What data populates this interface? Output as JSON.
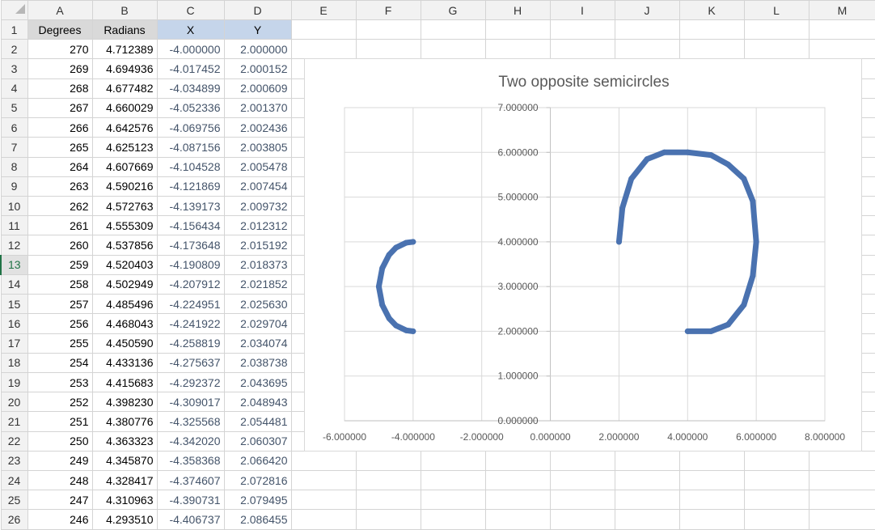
{
  "columns": [
    "A",
    "B",
    "C",
    "D",
    "E",
    "F",
    "G",
    "H",
    "I",
    "J",
    "K",
    "L",
    "M"
  ],
  "headers": {
    "degrees": "Degrees",
    "radians": "Radians",
    "x": "X",
    "y": "Y"
  },
  "rows": [
    {
      "row": "2",
      "deg": "270",
      "rad": "4.712389",
      "x": "-4.000000",
      "y": "2.000000"
    },
    {
      "row": "3",
      "deg": "269",
      "rad": "4.694936",
      "x": "-4.017452",
      "y": "2.000152"
    },
    {
      "row": "4",
      "deg": "268",
      "rad": "4.677482",
      "x": "-4.034899",
      "y": "2.000609"
    },
    {
      "row": "5",
      "deg": "267",
      "rad": "4.660029",
      "x": "-4.052336",
      "y": "2.001370"
    },
    {
      "row": "6",
      "deg": "266",
      "rad": "4.642576",
      "x": "-4.069756",
      "y": "2.002436"
    },
    {
      "row": "7",
      "deg": "265",
      "rad": "4.625123",
      "x": "-4.087156",
      "y": "2.003805"
    },
    {
      "row": "8",
      "deg": "264",
      "rad": "4.607669",
      "x": "-4.104528",
      "y": "2.005478"
    },
    {
      "row": "9",
      "deg": "263",
      "rad": "4.590216",
      "x": "-4.121869",
      "y": "2.007454"
    },
    {
      "row": "10",
      "deg": "262",
      "rad": "4.572763",
      "x": "-4.139173",
      "y": "2.009732"
    },
    {
      "row": "11",
      "deg": "261",
      "rad": "4.555309",
      "x": "-4.156434",
      "y": "2.012312"
    },
    {
      "row": "12",
      "deg": "260",
      "rad": "4.537856",
      "x": "-4.173648",
      "y": "2.015192"
    },
    {
      "row": "13",
      "deg": "259",
      "rad": "4.520403",
      "x": "-4.190809",
      "y": "2.018373"
    },
    {
      "row": "14",
      "deg": "258",
      "rad": "4.502949",
      "x": "-4.207912",
      "y": "2.021852"
    },
    {
      "row": "15",
      "deg": "257",
      "rad": "4.485496",
      "x": "-4.224951",
      "y": "2.025630"
    },
    {
      "row": "16",
      "deg": "256",
      "rad": "4.468043",
      "x": "-4.241922",
      "y": "2.029704"
    },
    {
      "row": "17",
      "deg": "255",
      "rad": "4.450590",
      "x": "-4.258819",
      "y": "2.034074"
    },
    {
      "row": "18",
      "deg": "254",
      "rad": "4.433136",
      "x": "-4.275637",
      "y": "2.038738"
    },
    {
      "row": "19",
      "deg": "253",
      "rad": "4.415683",
      "x": "-4.292372",
      "y": "2.043695"
    },
    {
      "row": "20",
      "deg": "252",
      "rad": "4.398230",
      "x": "-4.309017",
      "y": "2.048943"
    },
    {
      "row": "21",
      "deg": "251",
      "rad": "4.380776",
      "x": "-4.325568",
      "y": "2.054481"
    },
    {
      "row": "22",
      "deg": "250",
      "rad": "4.363323",
      "x": "-4.342020",
      "y": "2.060307"
    },
    {
      "row": "23",
      "deg": "249",
      "rad": "4.345870",
      "x": "-4.358368",
      "y": "2.066420"
    },
    {
      "row": "24",
      "deg": "248",
      "rad": "4.328417",
      "x": "-4.374607",
      "y": "2.072816"
    },
    {
      "row": "25",
      "deg": "247",
      "rad": "4.310963",
      "x": "-4.390731",
      "y": "2.079495"
    },
    {
      "row": "26",
      "deg": "246",
      "rad": "4.293510",
      "x": "-4.406737",
      "y": "2.086455"
    }
  ],
  "active_row": "13",
  "chart_data": {
    "type": "scatter",
    "title": "Two opposite semicircles",
    "xlim": [
      -6,
      8
    ],
    "ylim": [
      0,
      7
    ],
    "xticks": [
      "-6.000000",
      "-4.000000",
      "-2.000000",
      "0.000000",
      "2.000000",
      "4.000000",
      "6.000000",
      "8.000000"
    ],
    "yticks": [
      "0.000000",
      "1.000000",
      "2.000000",
      "3.000000",
      "4.000000",
      "5.000000",
      "6.000000",
      "7.000000"
    ],
    "grid": true,
    "marker_color": "#4a72b0",
    "series": [
      {
        "x": [
          -4,
          -4.2,
          -4.5,
          -4.7,
          -4.9,
          -5,
          -4.9,
          -4.7,
          -4.5,
          -4.2,
          -4
        ],
        "y": [
          2,
          2.02,
          2.13,
          2.29,
          2.59,
          3,
          3.41,
          3.71,
          3.87,
          3.98,
          4
        ]
      },
      {
        "x": [
          2,
          2.1,
          2.36,
          2.82,
          3.32,
          4,
          4.68,
          5.18,
          5.64,
          5.9,
          6,
          5.9,
          5.64,
          5.18,
          4.68,
          4
        ],
        "y": [
          4,
          4.76,
          5.41,
          5.85,
          6.0,
          6,
          5.94,
          5.73,
          5.41,
          4.91,
          4,
          3.24,
          2.59,
          2.15,
          2.0,
          2
        ]
      }
    ]
  }
}
